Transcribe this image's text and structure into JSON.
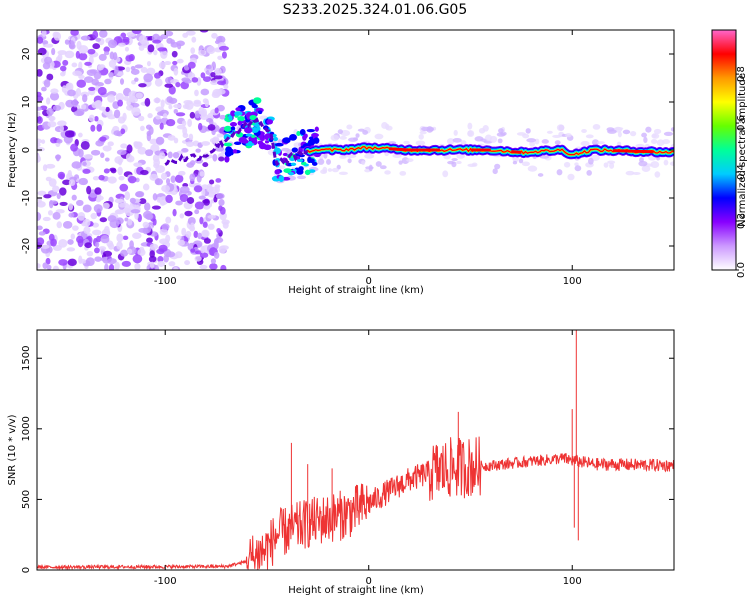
{
  "title": "S233.2025.324.01.06.G05",
  "spectrogram": {
    "type": "heatmap",
    "xlabel": "Height of straight line (km)",
    "ylabel": "Frequency (Hz)",
    "xlim": [
      -163,
      150
    ],
    "ylim": [
      -25,
      25
    ],
    "xticks": [
      -100,
      0,
      100
    ],
    "yticks": [
      -20,
      -10,
      0,
      10,
      20
    ],
    "colorbar": {
      "label": "Normalized spectral amplitude",
      "range": [
        0,
        0.98
      ],
      "ticks": [
        0.0,
        0.2,
        0.4,
        0.6,
        0.8
      ],
      "colors": [
        "#ffffff",
        "#cc99ff",
        "#8800ff",
        "#0000ff",
        "#00ccff",
        "#00ff99",
        "#66ff00",
        "#ffff00",
        "#ff9900",
        "#ff0000",
        "#ff66cc"
      ]
    },
    "ridge": [
      {
        "x": -100,
        "y": -2.5
      },
      {
        "x": -80,
        "y": -1
      },
      {
        "x": -65,
        "y": 4
      },
      {
        "x": -55,
        "y": 6
      },
      {
        "x": -48,
        "y": 3
      },
      {
        "x": -45,
        "y": -3
      },
      {
        "x": -38,
        "y": -1.5
      },
      {
        "x": -28,
        "y": 0
      },
      {
        "x": -15,
        "y": 0
      },
      {
        "x": 0,
        "y": 0.5
      },
      {
        "x": 20,
        "y": 0
      },
      {
        "x": 60,
        "y": 0
      },
      {
        "x": 75,
        "y": -0.5
      },
      {
        "x": 95,
        "y": 0
      },
      {
        "x": 100,
        "y": -1
      },
      {
        "x": 110,
        "y": 0
      },
      {
        "x": 150,
        "y": -0.5
      }
    ]
  },
  "snr": {
    "type": "line",
    "xlabel": "Height of straight line (km)",
    "ylabel": "SNR (10 * v/v)",
    "xlim": [
      -163,
      150
    ],
    "ylim": [
      0,
      1700
    ],
    "xticks": [
      -100,
      0,
      100
    ],
    "yticks": [
      0,
      500,
      1000,
      1500
    ],
    "color": "#ee3333",
    "trend": [
      {
        "x": -163,
        "y": 20
      },
      {
        "x": -70,
        "y": 25
      },
      {
        "x": -60,
        "y": 60
      },
      {
        "x": -50,
        "y": 150
      },
      {
        "x": -45,
        "y": 250
      },
      {
        "x": -30,
        "y": 330
      },
      {
        "x": -10,
        "y": 400
      },
      {
        "x": 0,
        "y": 470
      },
      {
        "x": 10,
        "y": 560
      },
      {
        "x": 20,
        "y": 640
      },
      {
        "x": 30,
        "y": 690
      },
      {
        "x": 40,
        "y": 720
      },
      {
        "x": 60,
        "y": 740
      },
      {
        "x": 80,
        "y": 770
      },
      {
        "x": 95,
        "y": 790
      },
      {
        "x": 110,
        "y": 750
      },
      {
        "x": 150,
        "y": 740
      }
    ],
    "spikes": [
      {
        "x": -38,
        "y": 900
      },
      {
        "x": -30,
        "y": 750
      },
      {
        "x": -18,
        "y": 720
      },
      {
        "x": 44,
        "y": 1120
      },
      {
        "x": 100,
        "y": 1140
      },
      {
        "x": 102,
        "y": 1700
      },
      {
        "x": 101,
        "y": 300
      },
      {
        "x": 103,
        "y": 210
      }
    ]
  }
}
